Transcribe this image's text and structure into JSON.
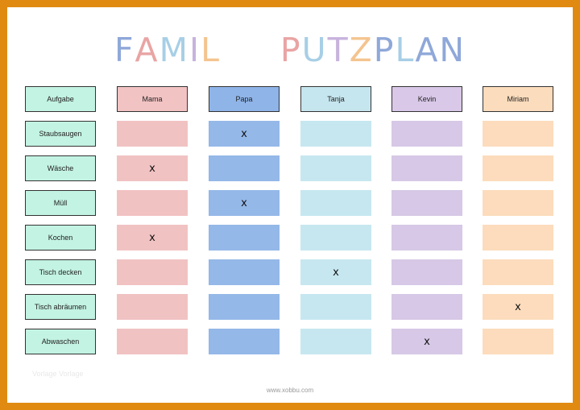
{
  "title": {
    "text": "FAMILY - PUTZPLAN",
    "letter_colors": [
      "#8fa8d9",
      "#e9a4a4",
      "#a7cfe6",
      "#c7b3dd",
      "#f4c48f",
      "#ffffff",
      "#c7b3dd",
      "#ffffff",
      "#8fa8d9",
      "#e9a4a4",
      "#a7cfe6",
      "#c7b3dd",
      "#f4c48f",
      "#8fa8d9",
      "#a7cfe6",
      "#8fa8d9",
      "#8fa8d9"
    ]
  },
  "header_label": "Aufgabe",
  "people": [
    {
      "name": "Mama",
      "header_color": "#f2c3c3",
      "cell_color": "#f1c2c2"
    },
    {
      "name": "Papa",
      "header_color": "#8fb4e8",
      "cell_color": "#94b8e8"
    },
    {
      "name": "Tanja",
      "header_color": "#c6e6ef",
      "cell_color": "#c6e7f0"
    },
    {
      "name": "Kevin",
      "header_color": "#d9c8e8",
      "cell_color": "#d6c8e6"
    },
    {
      "name": "Miriam",
      "header_color": "#fbdcbc",
      "cell_color": "#fcdcbc"
    }
  ],
  "label_color": "#c3f3e2",
  "tasks": [
    {
      "name": "Staubsaugen",
      "marks": [
        "",
        "x",
        "",
        "",
        ""
      ]
    },
    {
      "name": "Wäsche",
      "marks": [
        "x",
        "",
        "",
        "",
        ""
      ]
    },
    {
      "name": "Müll",
      "marks": [
        "",
        "x",
        "",
        "",
        ""
      ]
    },
    {
      "name": "Kochen",
      "marks": [
        "x",
        "",
        "",
        "",
        ""
      ]
    },
    {
      "name": "Tisch decken",
      "marks": [
        "",
        "",
        "x",
        "",
        ""
      ]
    },
    {
      "name": "Tisch abräumen",
      "marks": [
        "",
        "",
        "",
        "",
        "x"
      ]
    },
    {
      "name": "Abwaschen",
      "marks": [
        "",
        "",
        "",
        "x",
        ""
      ]
    }
  ],
  "footer_left": "Vorlage Vorlage",
  "footer": "www.xobbu.com"
}
